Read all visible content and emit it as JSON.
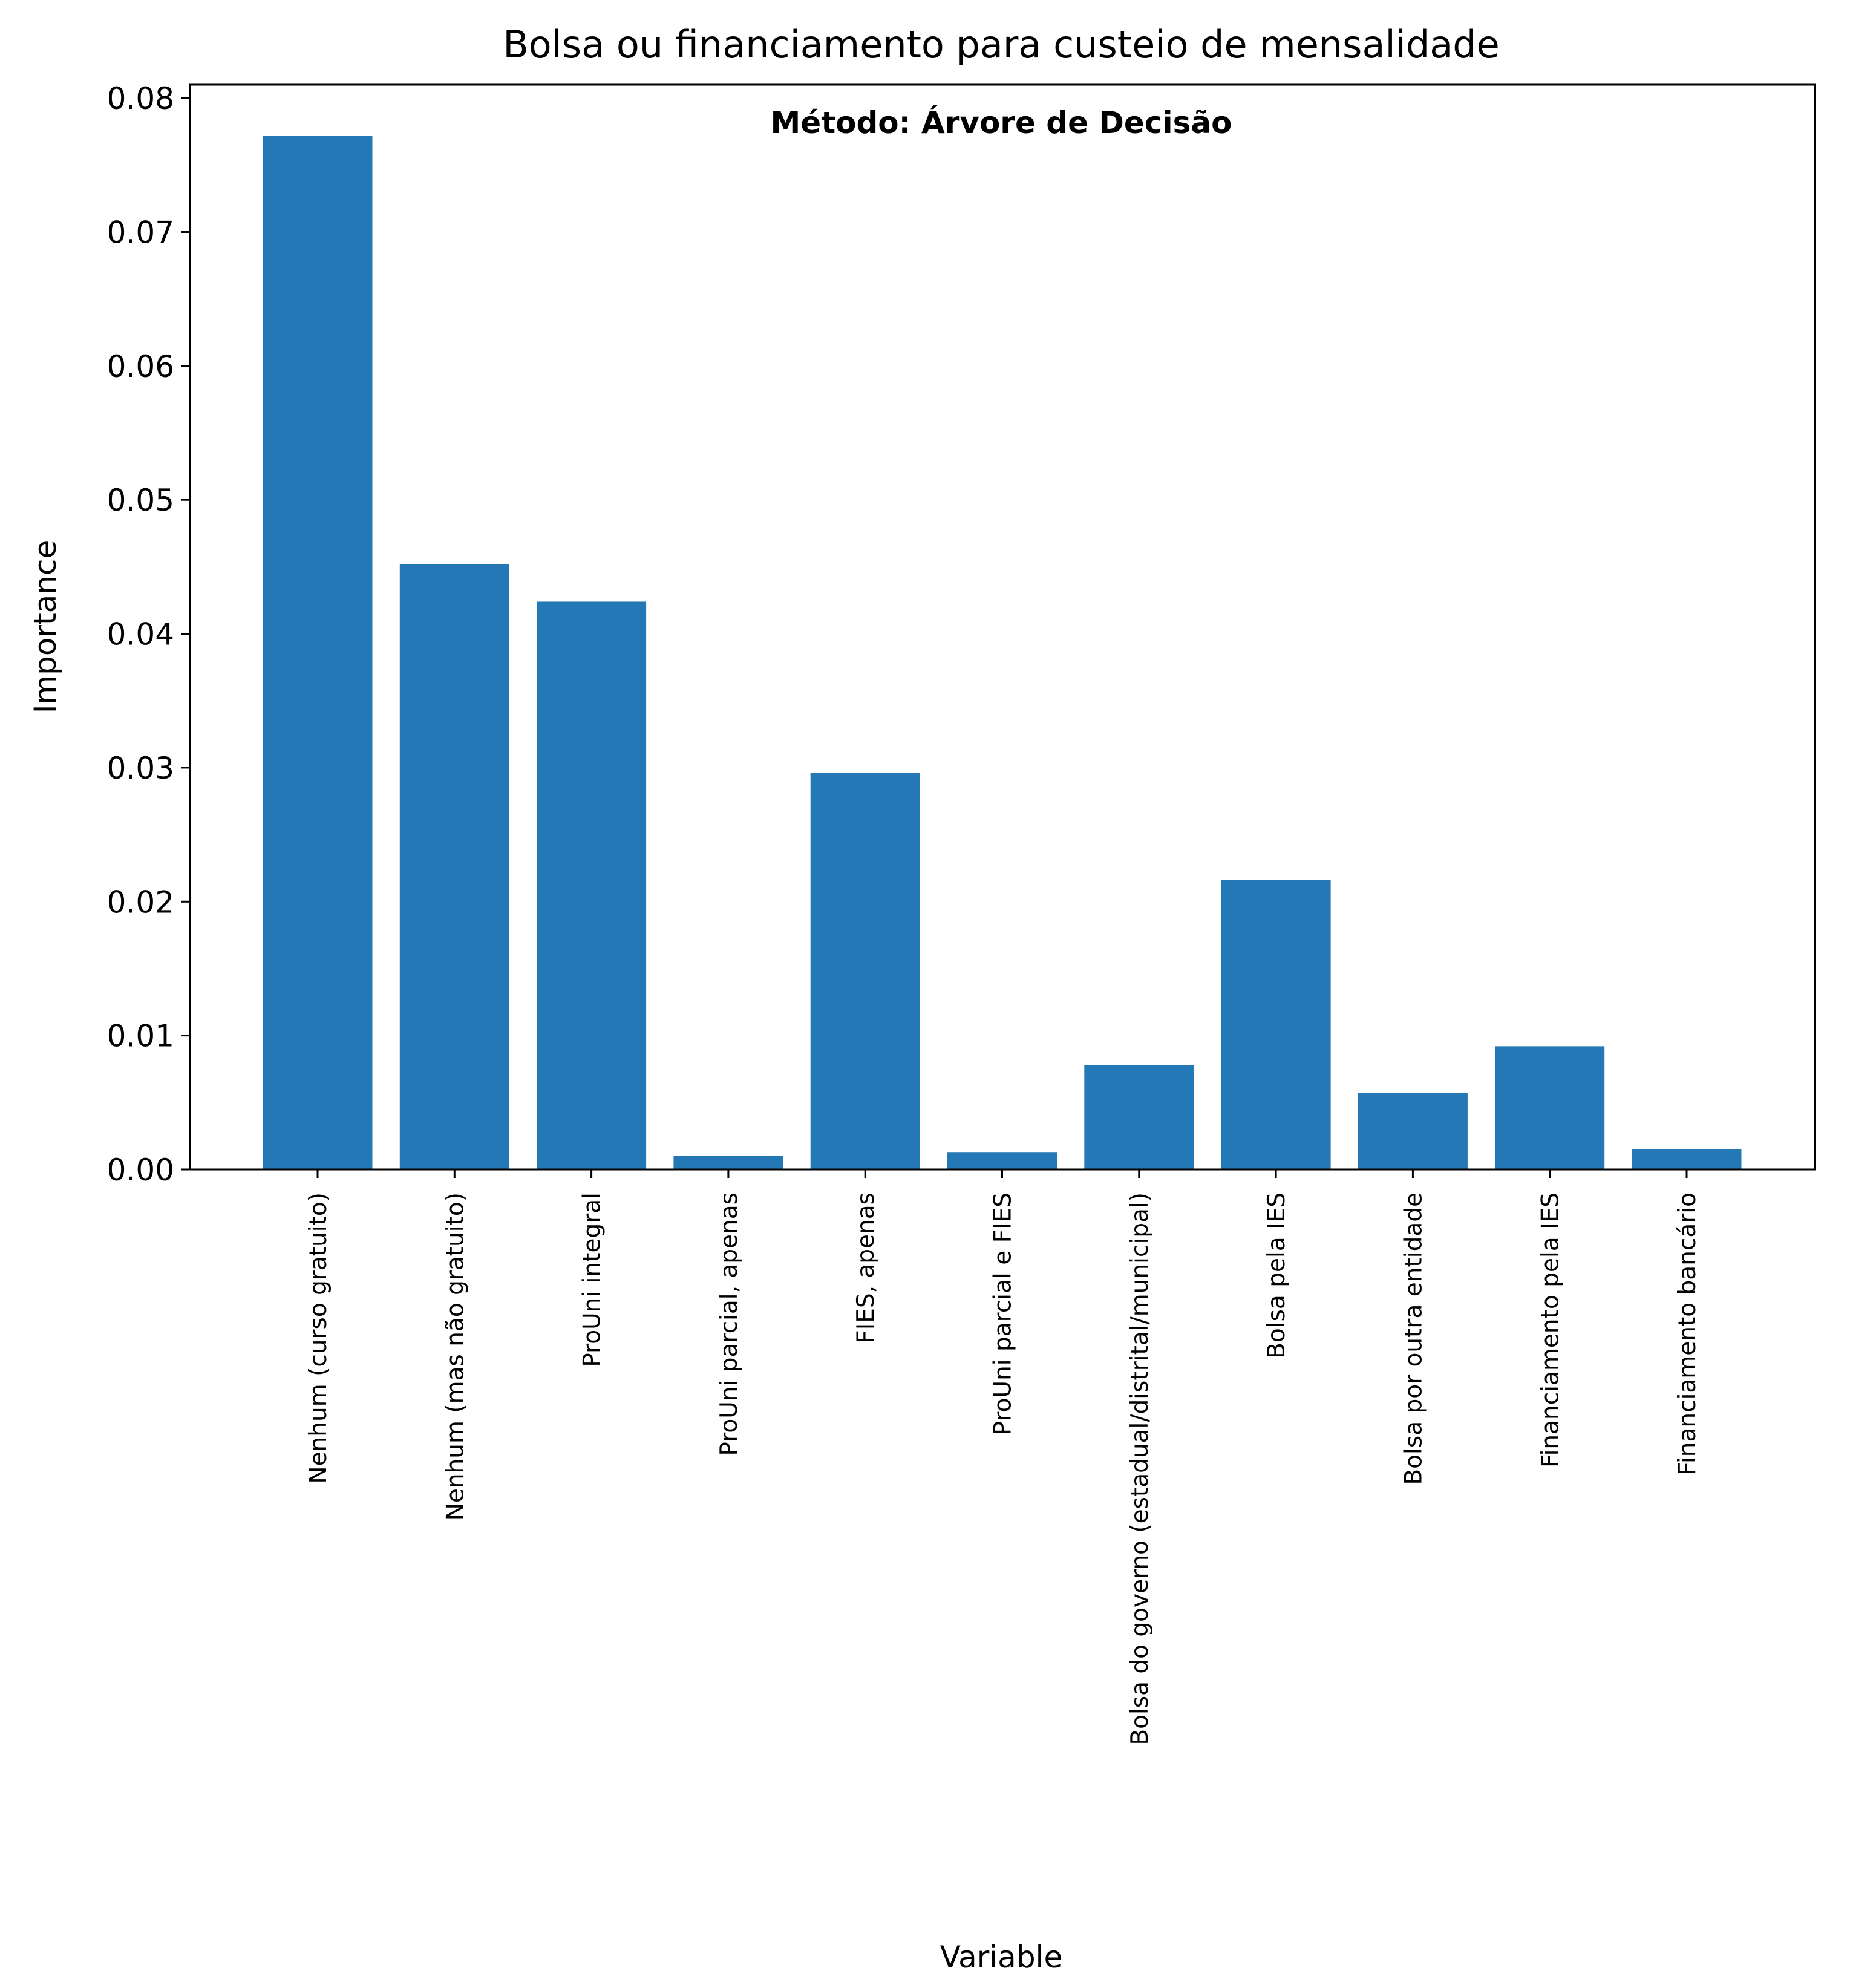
{
  "chart_data": {
    "type": "bar",
    "title": "Bolsa ou financiamento para custeio de mensalidade",
    "subtitle": "Método: Árvore de Decisão",
    "xlabel": "Variable",
    "ylabel": "Importance",
    "ylim": [
      0,
      0.081
    ],
    "yticks": [
      "0.00",
      "0.01",
      "0.02",
      "0.03",
      "0.04",
      "0.05",
      "0.06",
      "0.07",
      "0.08"
    ],
    "categories": [
      "Nenhum (curso gratuito)",
      "Nenhum (mas não gratuito)",
      "ProUni integral",
      "ProUni parcial, apenas",
      "FIES, apenas",
      "ProUni parcial e FIES",
      "Bolsa do governo (estadual/distrital/municipal)",
      "Bolsa pela IES",
      "Bolsa por outra entidade",
      "Financiamento pela IES",
      "Financiamento bancário"
    ],
    "values": [
      0.0772,
      0.0452,
      0.0424,
      0.001,
      0.0296,
      0.0013,
      0.0078,
      0.0216,
      0.0057,
      0.0092,
      0.0015
    ],
    "bar_color": "#2378b5",
    "grid": false,
    "legend": "none"
  }
}
